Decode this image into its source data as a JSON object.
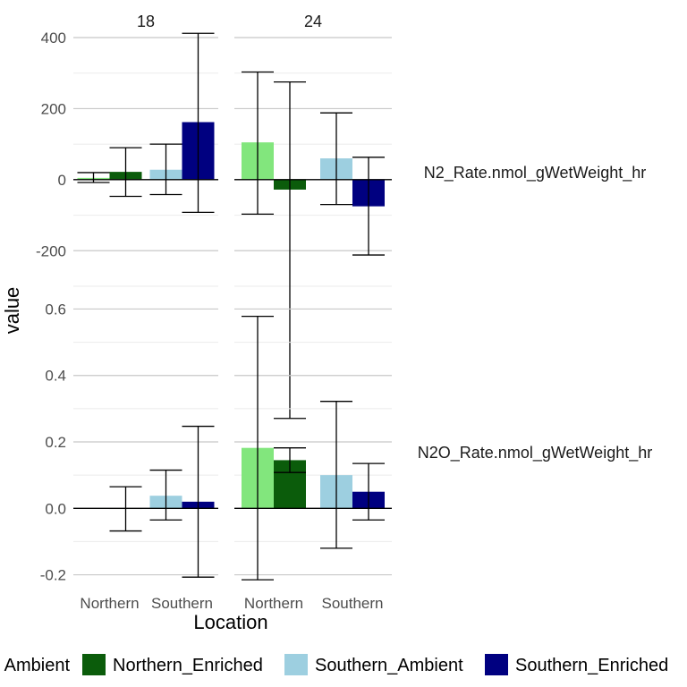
{
  "chart_data": {
    "type": "bar",
    "xlabel": "Location",
    "ylabel": "value",
    "facet_columns": [
      "18",
      "24"
    ],
    "facet_rows": [
      "N2_Rate.nmol_gWetWeight_hr",
      "N2O_Rate.nmol_gWetWeight_hr"
    ],
    "categories": [
      "Northern",
      "Southern"
    ],
    "legend_position": "bottom",
    "grid": true,
    "series": [
      {
        "name": "Northern_Ambient",
        "color": "#82e67d"
      },
      {
        "name": "Northern_Enriched",
        "color": "#0b5c0b"
      },
      {
        "name": "Southern_Ambient",
        "color": "#9dcfe0"
      },
      {
        "name": "Southern_Enriched",
        "color": "#000080"
      }
    ],
    "legend_labels": [
      "Ambient",
      "Northern_Enriched",
      "Southern_Ambient",
      "Southern_Enriched"
    ],
    "panels": [
      {
        "row": "N2_Rate.nmol_gWetWeight_hr",
        "ylim": [
          -300,
          400
        ],
        "ticks": [
          -200,
          0,
          200,
          400
        ],
        "tick_labels": [
          "-200",
          "0",
          "200",
          "400"
        ],
        "columns": {
          "18": [
            {
              "series": "Northern_Ambient",
              "value": 5,
              "low": -8,
              "high": 20
            },
            {
              "series": "Northern_Enriched",
              "value": 22,
              "low": -47,
              "high": 90
            },
            {
              "series": "Southern_Ambient",
              "value": 28,
              "low": -42,
              "high": 100
            },
            {
              "series": "Southern_Enriched",
              "value": 162,
              "low": -92,
              "high": 412
            }
          ],
          "24": [
            {
              "series": "Northern_Ambient",
              "value": 105,
              "low": -97,
              "high": 303
            },
            {
              "series": "Northern_Enriched",
              "value": -28,
              "low": -672,
              "high": 275
            },
            {
              "series": "Southern_Ambient",
              "value": 60,
              "low": -70,
              "high": 188
            },
            {
              "series": "Southern_Enriched",
              "value": -75,
              "low": -212,
              "high": 63
            }
          ]
        }
      },
      {
        "row": "N2O_Rate.nmol_gWetWeight_hr",
        "ylim": [
          -0.22,
          0.62
        ],
        "ticks": [
          -0.2,
          0.0,
          0.2,
          0.4,
          0.6
        ],
        "tick_labels": [
          "-0.2",
          "0.0",
          "0.2",
          "0.4",
          "0.6"
        ],
        "columns": {
          "18": [
            {
              "series": "Northern_Ambient",
              "value": 0.0,
              "low": 0.0,
              "high": 0.0
            },
            {
              "series": "Northern_Enriched",
              "value": -0.002,
              "low": -0.068,
              "high": 0.065
            },
            {
              "series": "Southern_Ambient",
              "value": 0.038,
              "low": -0.035,
              "high": 0.115
            },
            {
              "series": "Southern_Enriched",
              "value": 0.02,
              "low": -0.207,
              "high": 0.247
            }
          ],
          "24": [
            {
              "series": "Northern_Ambient",
              "value": 0.182,
              "low": -0.215,
              "high": 0.578
            },
            {
              "series": "Northern_Enriched",
              "value": 0.145,
              "low": 0.108,
              "high": 0.182
            },
            {
              "series": "Southern_Ambient",
              "value": 0.1,
              "low": -0.12,
              "high": 0.322
            },
            {
              "series": "Southern_Enriched",
              "value": 0.05,
              "low": -0.035,
              "high": 0.135
            }
          ]
        }
      }
    ]
  }
}
